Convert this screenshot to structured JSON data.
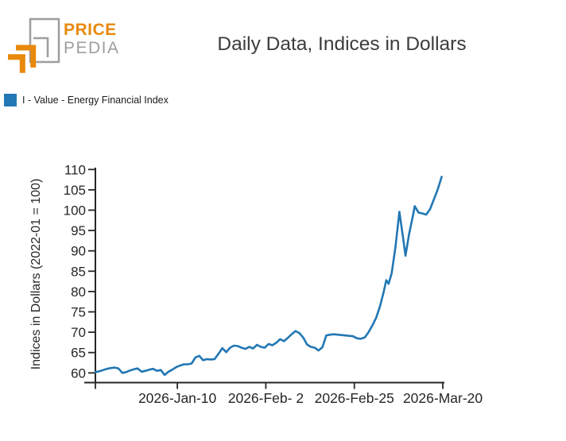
{
  "logo": {
    "line1": "PRICE",
    "line2": "PEDIA",
    "orange": "#E8890B",
    "gray": "#9E9EA0"
  },
  "title": "Daily Data, Indices in Dollars",
  "legend": {
    "label": "I - Value - Energy Financial Index",
    "color": "#2277B4"
  },
  "chart_data": {
    "type": "line",
    "title": "Daily Data, Indices in Dollars",
    "ylabel": "Indices in Dollars (2022-01 = 100)",
    "xlabel": "",
    "grid": false,
    "legend_position": "top-left",
    "yticks": [
      60,
      65,
      70,
      75,
      80,
      85,
      90,
      95,
      100,
      105,
      110
    ],
    "ylim": [
      57.8,
      110.5
    ],
    "x_unit": "days from first observation",
    "xticks": [
      {
        "day": 0,
        "label": ""
      },
      {
        "day": 21.3,
        "label": "2026-Jan-10"
      },
      {
        "day": 44.3,
        "label": "2026-Feb- 2"
      },
      {
        "day": 67.3,
        "label": "2026-Feb-25"
      },
      {
        "day": 90.3,
        "label": "2026-Mar-20"
      }
    ],
    "series": [
      {
        "name": "I - Value - Energy Financial Index",
        "color": "#2277B4",
        "points": [
          [
            0,
            60.2
          ],
          [
            1,
            60.4
          ],
          [
            2,
            60.7
          ],
          [
            3,
            61.0
          ],
          [
            4,
            61.2
          ],
          [
            5,
            61.3
          ],
          [
            6,
            61.1
          ],
          [
            7,
            60.0
          ],
          [
            8,
            60.2
          ],
          [
            9,
            60.6
          ],
          [
            10,
            60.9
          ],
          [
            11,
            61.1
          ],
          [
            12,
            60.3
          ],
          [
            13,
            60.5
          ],
          [
            14,
            60.8
          ],
          [
            15,
            61.0
          ],
          [
            16,
            60.5
          ],
          [
            17,
            60.7
          ],
          [
            18,
            59.5
          ],
          [
            19,
            60.3
          ],
          [
            20,
            60.8
          ],
          [
            21,
            61.4
          ],
          [
            22,
            61.8
          ],
          [
            23,
            62.1
          ],
          [
            24,
            62.1
          ],
          [
            25,
            62.3
          ],
          [
            26,
            63.8
          ],
          [
            27,
            64.2
          ],
          [
            28,
            63.1
          ],
          [
            29,
            63.4
          ],
          [
            30,
            63.3
          ],
          [
            31,
            63.4
          ],
          [
            32,
            64.7
          ],
          [
            33,
            66.1
          ],
          [
            34,
            65.1
          ],
          [
            35,
            66.2
          ],
          [
            36,
            66.7
          ],
          [
            37,
            66.6
          ],
          [
            38,
            66.2
          ],
          [
            39,
            65.9
          ],
          [
            40,
            66.4
          ],
          [
            41,
            66.0
          ],
          [
            42,
            66.9
          ],
          [
            43,
            66.4
          ],
          [
            44,
            66.2
          ],
          [
            45,
            67.1
          ],
          [
            46,
            66.8
          ],
          [
            47,
            67.4
          ],
          [
            48,
            68.3
          ],
          [
            49,
            67.8
          ],
          [
            50,
            68.6
          ],
          [
            51,
            69.5
          ],
          [
            52,
            70.3
          ],
          [
            53,
            69.8
          ],
          [
            54,
            68.7
          ],
          [
            55,
            67.0
          ],
          [
            56,
            66.4
          ],
          [
            57,
            66.2
          ],
          [
            58,
            65.5
          ],
          [
            59,
            66.3
          ],
          [
            60,
            69.2
          ],
          [
            61,
            69.4
          ],
          [
            62,
            69.5
          ],
          [
            64,
            69.3
          ],
          [
            66,
            69.1
          ],
          [
            67,
            69.0
          ],
          [
            68,
            68.5
          ],
          [
            69,
            68.4
          ],
          [
            70,
            68.7
          ],
          [
            71,
            70.0
          ],
          [
            72,
            71.7
          ],
          [
            73,
            73.6
          ],
          [
            74,
            76.5
          ],
          [
            75,
            80.2
          ],
          [
            75.6,
            82.8
          ],
          [
            76.2,
            81.9
          ],
          [
            77,
            84.5
          ],
          [
            78,
            91.0
          ],
          [
            79,
            99.6
          ],
          [
            80,
            93.0
          ],
          [
            80.6,
            88.8
          ],
          [
            81.5,
            94.0
          ],
          [
            82.5,
            98.5
          ],
          [
            83,
            101.0
          ],
          [
            84,
            99.4
          ],
          [
            85,
            99.2
          ],
          [
            86,
            98.9
          ],
          [
            87,
            100.3
          ],
          [
            88,
            102.7
          ],
          [
            89,
            105.2
          ],
          [
            90,
            108.2
          ]
        ]
      }
    ]
  }
}
